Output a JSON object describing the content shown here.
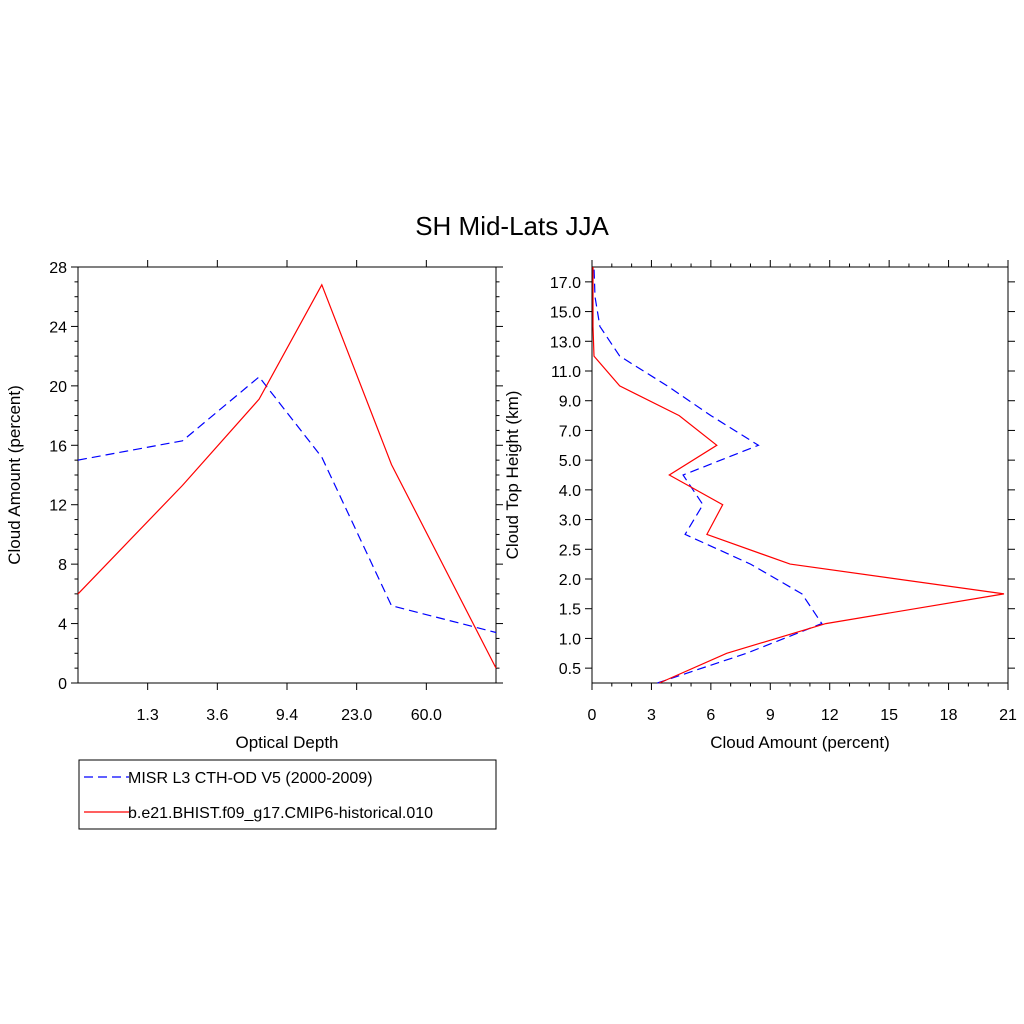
{
  "title": "SH Mid-Lats JJA",
  "chart_data": [
    {
      "type": "line",
      "xlabel": "Optical Depth",
      "ylabel": "Cloud Amount (percent)",
      "x_tick_labels": [
        "1.3",
        "3.6",
        "9.4",
        "23.0",
        "60.0"
      ],
      "x_positions": [
        0,
        1,
        2,
        3,
        4,
        5,
        6
      ],
      "y_ticks": [
        0,
        4,
        8,
        12,
        16,
        20,
        24,
        28
      ],
      "ylim": [
        0,
        28
      ],
      "xlim": [
        0,
        6
      ],
      "series": [
        {
          "name": "MISR L3 CTH-OD V5 (2000-2009)",
          "color": "#0000ff",
          "dashed": true,
          "values": [
            15.0,
            16.3,
            20.6,
            15.2,
            5.2,
            3.4
          ]
        },
        {
          "name": "b.e21.BHIST.f09_g17.CMIP6-historical.010",
          "color": "#ff0000",
          "dashed": false,
          "values": [
            6.0,
            13.3,
            19.1,
            26.8,
            14.7,
            1.0
          ]
        }
      ]
    },
    {
      "type": "line",
      "xlabel": "Cloud Amount (percent)",
      "ylabel": "Cloud Top Height (km)",
      "x_ticks": [
        0,
        3,
        6,
        9,
        12,
        15,
        18,
        21
      ],
      "xlim": [
        0,
        21
      ],
      "y_tick_labels": [
        "0.5",
        "1.0",
        "1.5",
        "2.0",
        "2.5",
        "3.0",
        "4.0",
        "5.0",
        "7.0",
        "9.0",
        "11.0",
        "13.0",
        "15.0",
        "17.0"
      ],
      "series": [
        {
          "name": "MISR L3 CTH-OD V5 (2000-2009)",
          "color": "#0000ff",
          "dashed": true,
          "heights": [
            "0.25",
            "0.75",
            "1.25",
            "1.75",
            "2.25",
            "2.75",
            "3.5",
            "4.5",
            "6.0",
            "8.0",
            "10.0",
            "12.0",
            "14.0",
            "16.0",
            "17.5"
          ],
          "values": [
            3.3,
            7.8,
            11.6,
            10.6,
            8.0,
            4.7,
            5.6,
            4.6,
            8.4,
            6.0,
            3.8,
            1.4,
            0.4,
            0.15,
            0.1
          ]
        },
        {
          "name": "b.e21.BHIST.f09_g17.CMIP6-historical.010",
          "color": "#ff0000",
          "dashed": false,
          "heights": [
            "0.25",
            "0.75",
            "1.25",
            "1.75",
            "2.25",
            "2.75",
            "3.5",
            "4.5",
            "6.0",
            "8.0",
            "10.0",
            "12.0",
            "14.0",
            "16.0",
            "17.5"
          ],
          "values": [
            3.4,
            6.8,
            11.8,
            20.8,
            10.0,
            5.8,
            6.6,
            3.9,
            6.3,
            4.4,
            1.4,
            0.1,
            0.05,
            0.05,
            0.05
          ]
        }
      ]
    }
  ],
  "legend": {
    "items": [
      {
        "label": "MISR L3 CTH-OD V5 (2000-2009)",
        "color": "#0000ff",
        "dashed": true
      },
      {
        "label": "b.e21.BHIST.f09_g17.CMIP6-historical.010",
        "color": "#ff0000",
        "dashed": false
      }
    ]
  }
}
